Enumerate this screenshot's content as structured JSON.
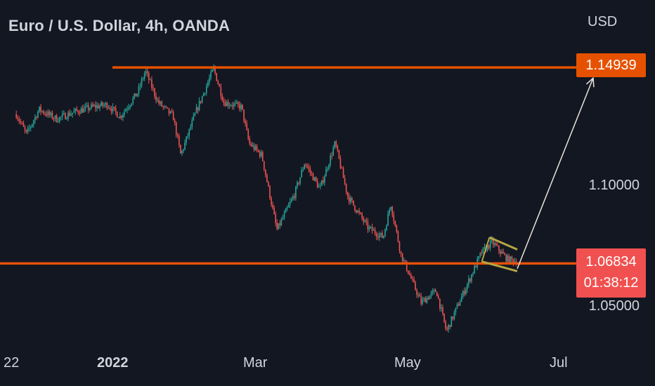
{
  "header": {
    "symbol_title": "Euro / U.S. Dollar, 4h, OANDA",
    "currency": "USD"
  },
  "price_tags": {
    "resistance": "1.14939",
    "current_price": "1.06834",
    "countdown": "01:38:12"
  },
  "price_axis": [
    "1.10000",
    "1.05000"
  ],
  "time_axis": [
    {
      "label": "22",
      "bold": false
    },
    {
      "label": "2022",
      "bold": true
    },
    {
      "label": "Mar",
      "bold": false
    },
    {
      "label": "May",
      "bold": false
    },
    {
      "label": "Jul",
      "bold": false
    }
  ],
  "colors": {
    "background": "#131722",
    "up_candle": "#26a69a",
    "down_candle": "#ef5350",
    "level_line": "#e65100",
    "current_tag": "#f0504f",
    "pattern": "#b5a642",
    "arrow": "#e8e4dc"
  },
  "chart_data": {
    "type": "candlestick",
    "title": "Euro / U.S. Dollar, 4h, OANDA",
    "ylabel": "USD",
    "y_ticks": [
      1.1,
      1.05
    ],
    "levels": [
      {
        "name": "resistance",
        "value": 1.14939
      },
      {
        "name": "support",
        "value": 1.0682
      }
    ],
    "current_price": 1.06834,
    "price_path": [
      {
        "date": "2021-11-24",
        "price": 1.13
      },
      {
        "date": "2021-11-28",
        "price": 1.1218
      },
      {
        "date": "2021-12-03",
        "price": 1.132
      },
      {
        "date": "2021-12-10",
        "price": 1.128
      },
      {
        "date": "2021-12-17",
        "price": 1.131
      },
      {
        "date": "2021-12-24",
        "price": 1.133
      },
      {
        "date": "2021-12-30",
        "price": 1.134
      },
      {
        "date": "2022-01-04",
        "price": 1.129
      },
      {
        "date": "2022-01-11",
        "price": 1.139
      },
      {
        "date": "2022-01-14",
        "price": 1.148
      },
      {
        "date": "2022-01-19",
        "price": 1.135
      },
      {
        "date": "2022-01-25",
        "price": 1.129
      },
      {
        "date": "2022-01-28",
        "price": 1.113
      },
      {
        "date": "2022-02-03",
        "price": 1.131
      },
      {
        "date": "2022-02-10",
        "price": 1.149
      },
      {
        "date": "2022-02-14",
        "price": 1.135
      },
      {
        "date": "2022-02-21",
        "price": 1.133
      },
      {
        "date": "2022-02-24",
        "price": 1.118
      },
      {
        "date": "2022-03-01",
        "price": 1.113
      },
      {
        "date": "2022-03-07",
        "price": 1.082
      },
      {
        "date": "2022-03-14",
        "price": 1.097
      },
      {
        "date": "2022-03-18",
        "price": 1.11
      },
      {
        "date": "2022-03-24",
        "price": 1.099
      },
      {
        "date": "2022-03-30",
        "price": 1.118
      },
      {
        "date": "2022-04-04",
        "price": 1.096
      },
      {
        "date": "2022-04-12",
        "price": 1.083
      },
      {
        "date": "2022-04-18",
        "price": 1.079
      },
      {
        "date": "2022-04-21",
        "price": 1.093
      },
      {
        "date": "2022-04-25",
        "price": 1.072
      },
      {
        "date": "2022-05-03",
        "price": 1.052
      },
      {
        "date": "2022-05-09",
        "price": 1.057
      },
      {
        "date": "2022-05-13",
        "price": 1.04
      },
      {
        "date": "2022-05-18",
        "price": 1.052
      },
      {
        "date": "2022-05-27",
        "price": 1.073
      },
      {
        "date": "2022-05-31",
        "price": 1.077
      },
      {
        "date": "2022-06-06",
        "price": 1.07
      },
      {
        "date": "2022-06-10",
        "price": 1.069
      }
    ],
    "annotations": {
      "flag_upper": [
        {
          "date": "2022-05-30",
          "price": 1.079
        },
        {
          "date": "2022-06-10",
          "price": 1.074
        }
      ],
      "flag_lower": [
        {
          "date": "2022-05-27",
          "price": 1.069
        },
        {
          "date": "2022-06-10",
          "price": 1.065
        }
      ],
      "projection_arrow": [
        {
          "date": "2022-06-10",
          "price": 1.066
        },
        {
          "date": "2022-07-10",
          "price": 1.145
        }
      ]
    }
  }
}
